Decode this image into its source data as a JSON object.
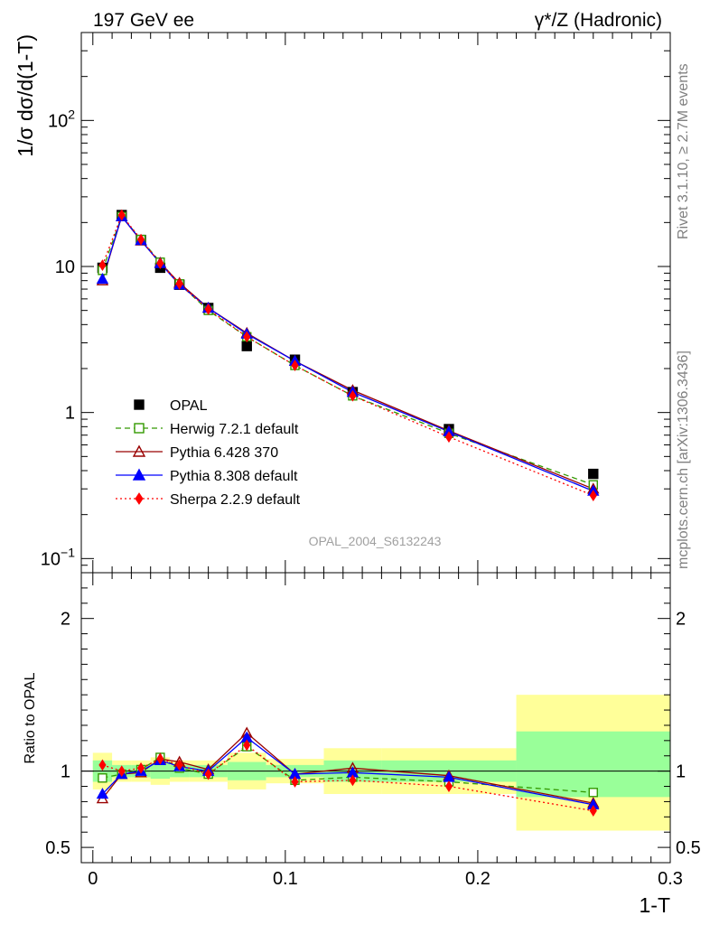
{
  "header": {
    "left": "197 GeV ee",
    "right": "γ*/Z (Hadronic)"
  },
  "side_text": {
    "top": "Rivet 3.1.10, ≥ 2.7M events",
    "bottom": "mcplots.cern.ch [arXiv:1306.3436]"
  },
  "chart_data": [
    {
      "type": "line",
      "panel": "main",
      "ylabel": "1/σ dσ/d(1-T)",
      "y_scale": "log",
      "ylim": [
        0.08,
        400
      ],
      "xlim": [
        -0.006,
        0.3
      ],
      "watermark": "OPAL_2004_S6132243",
      "legend_position": "lower-left",
      "yticks": [
        {
          "value": 100,
          "label": "10",
          "sup": "2"
        },
        {
          "value": 10,
          "label": "10",
          "sup": ""
        },
        {
          "value": 1,
          "label": "1",
          "sup": ""
        },
        {
          "value": 0.1,
          "label": "10",
          "sup": "−1"
        }
      ],
      "x": [
        0.005,
        0.015,
        0.025,
        0.035,
        0.045,
        0.06,
        0.08,
        0.105,
        0.135,
        0.185,
        0.26
      ],
      "series": [
        {
          "name": "OPAL",
          "color": "#000000",
          "marker": "square-filled",
          "line": "none",
          "values": [
            9.8,
            22.5,
            15.2,
            9.8,
            7.5,
            5.2,
            2.85,
            2.3,
            1.38,
            0.77,
            0.38
          ]
        },
        {
          "name": "Herwig 7.2.1 default",
          "color": "#339900",
          "marker": "square-open",
          "line": "dashed",
          "values": [
            9.4,
            22.0,
            15.3,
            10.7,
            7.6,
            5.0,
            3.3,
            2.1,
            1.3,
            0.72,
            0.32
          ]
        },
        {
          "name": "Pythia 6.428 370",
          "color": "#990000",
          "marker": "triangle-open",
          "line": "solid",
          "values": [
            8.0,
            22.0,
            15.0,
            10.6,
            7.7,
            5.2,
            3.5,
            2.25,
            1.42,
            0.75,
            0.3
          ]
        },
        {
          "name": "Pythia 8.308 default",
          "color": "#0000ff",
          "marker": "triangle-filled",
          "line": "solid",
          "values": [
            8.2,
            22.0,
            15.1,
            10.5,
            7.5,
            5.2,
            3.45,
            2.25,
            1.38,
            0.74,
            0.29
          ]
        },
        {
          "name": "Sherpa 2.2.9 default",
          "color": "#ff0000",
          "marker": "diamond-filled",
          "line": "dotted",
          "values": [
            10.2,
            22.5,
            15.3,
            10.5,
            7.6,
            5.1,
            3.3,
            2.1,
            1.3,
            0.68,
            0.27
          ]
        }
      ]
    },
    {
      "type": "line",
      "panel": "ratio",
      "ylabel": "Ratio to OPAL",
      "xlabel": "1-T",
      "ylim": [
        0.4,
        2.3
      ],
      "xlim": [
        -0.006,
        0.3
      ],
      "reference_line": 1,
      "yticks": [
        {
          "value": 2,
          "label": "2"
        },
        {
          "value": 1,
          "label": "1"
        },
        {
          "value": 0.5,
          "label": "0.5"
        }
      ],
      "xticks": [
        {
          "value": 0,
          "label": "0"
        },
        {
          "value": 0.1,
          "label": "0.1"
        },
        {
          "value": 0.2,
          "label": "0.2"
        },
        {
          "value": 0.3,
          "label": "0.3"
        }
      ],
      "bands": [
        {
          "x0": 0.0,
          "x1": 0.01,
          "inner": [
            0.93,
            1.07
          ],
          "outer": [
            0.88,
            1.12
          ]
        },
        {
          "x0": 0.01,
          "x1": 0.02,
          "inner": [
            0.96,
            1.04
          ],
          "outer": [
            0.93,
            1.07
          ]
        },
        {
          "x0": 0.02,
          "x1": 0.03,
          "inner": [
            0.96,
            1.04
          ],
          "outer": [
            0.93,
            1.07
          ]
        },
        {
          "x0": 0.03,
          "x1": 0.04,
          "inner": [
            0.95,
            1.05
          ],
          "outer": [
            0.91,
            1.09
          ]
        },
        {
          "x0": 0.04,
          "x1": 0.05,
          "inner": [
            0.96,
            1.04
          ],
          "outer": [
            0.93,
            1.07
          ]
        },
        {
          "x0": 0.05,
          "x1": 0.07,
          "inner": [
            0.96,
            1.04
          ],
          "outer": [
            0.93,
            1.07
          ]
        },
        {
          "x0": 0.07,
          "x1": 0.09,
          "inner": [
            0.94,
            1.06
          ],
          "outer": [
            0.88,
            1.12
          ]
        },
        {
          "x0": 0.09,
          "x1": 0.12,
          "inner": [
            0.96,
            1.04
          ],
          "outer": [
            0.92,
            1.08
          ]
        },
        {
          "x0": 0.12,
          "x1": 0.15,
          "inner": [
            0.93,
            1.07
          ],
          "outer": [
            0.85,
            1.15
          ]
        },
        {
          "x0": 0.15,
          "x1": 0.22,
          "inner": [
            0.93,
            1.07
          ],
          "outer": [
            0.85,
            1.15
          ]
        },
        {
          "x0": 0.22,
          "x1": 0.3,
          "inner": [
            0.83,
            1.26
          ],
          "outer": [
            0.61,
            1.5
          ]
        }
      ],
      "series": [
        {
          "name": "Herwig 7.2.1 default",
          "color": "#339900",
          "marker": "square-open",
          "line": "dashed",
          "values": [
            0.955,
            0.98,
            1.01,
            1.09,
            1.02,
            0.98,
            1.16,
            0.94,
            0.96,
            0.93,
            0.86
          ]
        },
        {
          "name": "Pythia 6.428 370",
          "color": "#990000",
          "marker": "triangle-open",
          "line": "solid",
          "values": [
            0.82,
            0.98,
            0.99,
            1.08,
            1.06,
            1.01,
            1.25,
            0.98,
            1.02,
            0.97,
            0.79
          ]
        },
        {
          "name": "Pythia 8.308 default",
          "color": "#0000ff",
          "marker": "triangle-filled",
          "line": "solid",
          "values": [
            0.85,
            0.98,
            1.0,
            1.07,
            1.03,
            1.0,
            1.22,
            0.98,
            0.99,
            0.96,
            0.78
          ]
        },
        {
          "name": "Sherpa 2.2.9 default",
          "color": "#ff0000",
          "marker": "diamond-filled",
          "line": "dotted",
          "values": [
            1.04,
            1.0,
            1.02,
            1.08,
            1.04,
            0.98,
            1.17,
            0.93,
            0.94,
            0.9,
            0.74
          ]
        }
      ]
    }
  ]
}
